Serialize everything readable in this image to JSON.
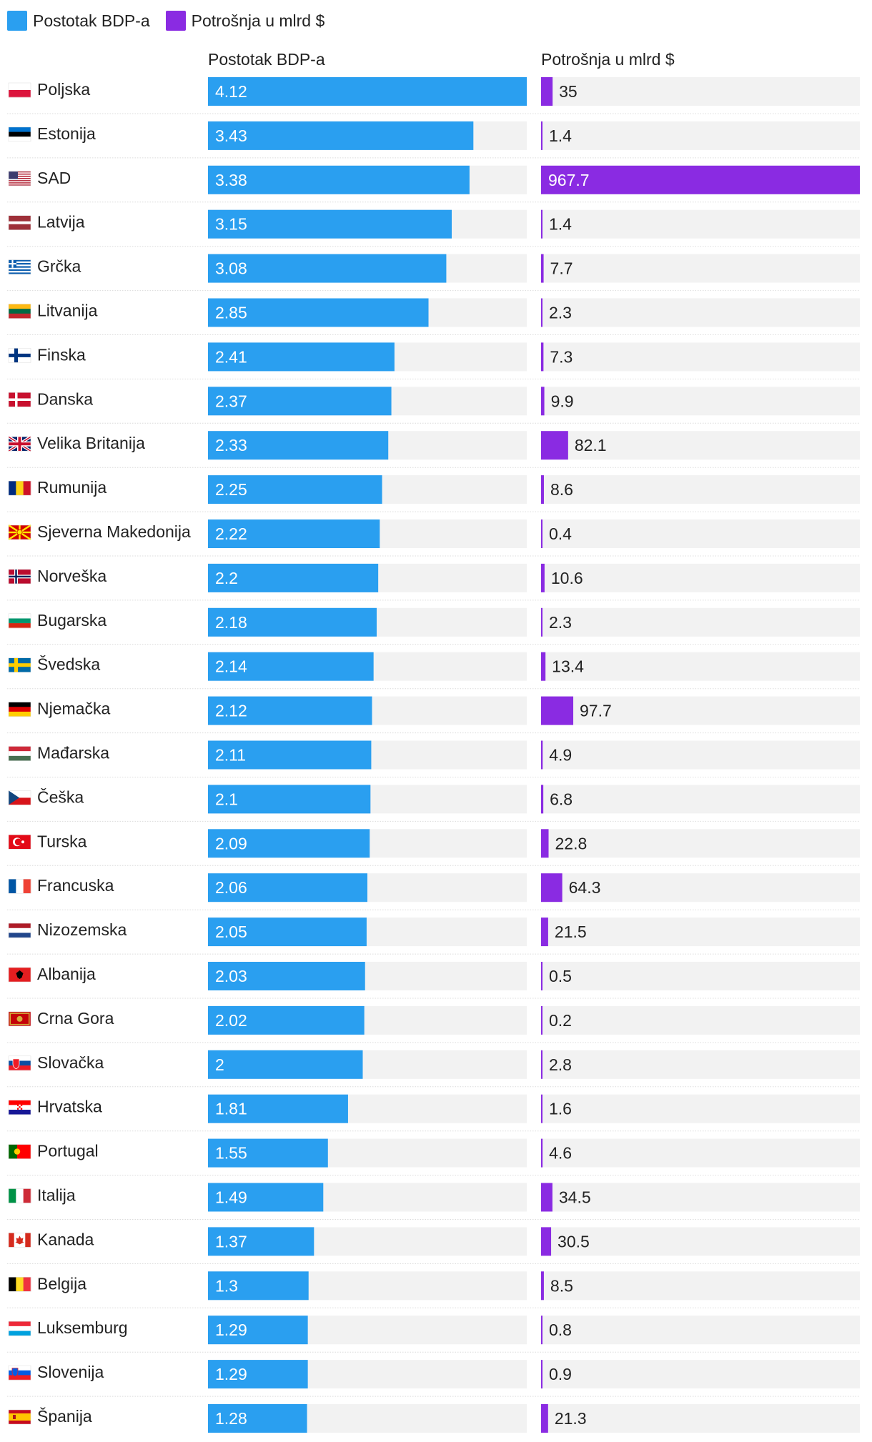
{
  "legend": [
    {
      "label": "Postotak BDP-a",
      "color": "#2a9ff0"
    },
    {
      "label": "Potrošnja u mlrd $",
      "color": "#8a2be2"
    }
  ],
  "chart_data": {
    "type": "bar",
    "orientation": "horizontal",
    "columns": [
      "Postotak BDP-a",
      "Potrošnja u mlrd $"
    ],
    "categories": [
      "Poljska",
      "Estonija",
      "SAD",
      "Latvija",
      "Grčka",
      "Litvanija",
      "Finska",
      "Danska",
      "Velika Britanija",
      "Rumunija",
      "Sjeverna Makedonija",
      "Norveška",
      "Bugarska",
      "Švedska",
      "Njemačka",
      "Mađarska",
      "Češka",
      "Turska",
      "Francuska",
      "Nizozemska",
      "Albanija",
      "Crna Gora",
      "Slovačka",
      "Hrvatska",
      "Portugal",
      "Italija",
      "Kanada",
      "Belgija",
      "Luksemburg",
      "Slovenija",
      "Španija"
    ],
    "series": [
      {
        "name": "Postotak BDP-a",
        "color": "#2a9ff0",
        "max": 4.12,
        "values": [
          4.12,
          3.43,
          3.38,
          3.15,
          3.08,
          2.85,
          2.41,
          2.37,
          2.33,
          2.25,
          2.22,
          2.2,
          2.18,
          2.14,
          2.12,
          2.11,
          2.1,
          2.09,
          2.06,
          2.05,
          2.03,
          2.02,
          2,
          1.81,
          1.55,
          1.49,
          1.37,
          1.3,
          1.29,
          1.29,
          1.28
        ]
      },
      {
        "name": "Potrošnja u mlrd $",
        "color": "#8a2be2",
        "max": 967.7,
        "values": [
          35,
          1.4,
          967.7,
          1.4,
          7.7,
          2.3,
          7.3,
          9.9,
          82.1,
          8.6,
          0.4,
          10.6,
          2.3,
          13.4,
          97.7,
          4.9,
          6.8,
          22.8,
          64.3,
          21.5,
          0.5,
          0.2,
          2.8,
          1.6,
          4.6,
          34.5,
          30.5,
          8.5,
          0.8,
          0.9,
          21.3
        ]
      }
    ],
    "flags": [
      "pl",
      "ee",
      "us",
      "lv",
      "gr",
      "lt",
      "fi",
      "dk",
      "gb",
      "ro",
      "mk",
      "no",
      "bg",
      "se",
      "de",
      "hu",
      "cz",
      "tr",
      "fr",
      "nl",
      "al",
      "me",
      "sk",
      "hr",
      "pt",
      "it",
      "ca",
      "be",
      "lu",
      "si",
      "es"
    ]
  }
}
